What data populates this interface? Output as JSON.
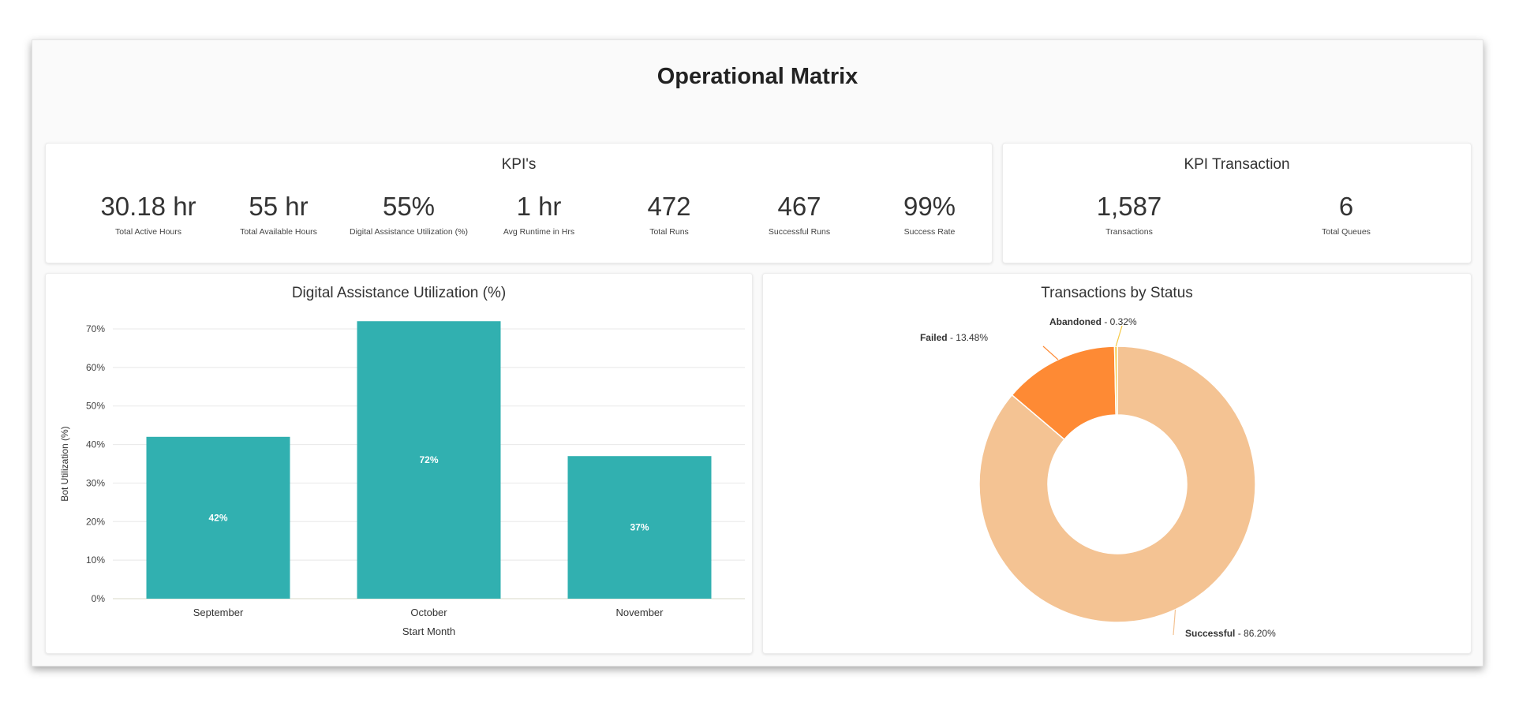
{
  "title": "Operational Matrix",
  "kpis": {
    "title": "KPI's",
    "items": [
      {
        "value": "30.18 hr",
        "label": "Total Active Hours"
      },
      {
        "value": "55 hr",
        "label": "Total Available Hours"
      },
      {
        "value": "55%",
        "label": "Digital Assistance Utilization (%)"
      },
      {
        "value": "1 hr",
        "label": "Avg Runtime in Hrs"
      },
      {
        "value": "472",
        "label": "Total Runs"
      },
      {
        "value": "467",
        "label": "Successful Runs"
      },
      {
        "value": "99%",
        "label": "Success Rate"
      }
    ]
  },
  "kpi_transaction": {
    "title": "KPI Transaction",
    "items": [
      {
        "value": "1,587",
        "label": "Transactions"
      },
      {
        "value": "6",
        "label": "Total Queues"
      }
    ]
  },
  "colors": {
    "bar": "#31b0b0",
    "successful": "#f4c393",
    "failed": "#fe8a34",
    "abandoned": "#f5c842"
  },
  "chart_data": [
    {
      "type": "bar",
      "title": "Digital Assistance Utilization (%)",
      "xlabel": "Start Month",
      "ylabel": "Bot Utilization (%)",
      "categories": [
        "September",
        "October",
        "November"
      ],
      "values": [
        42,
        72,
        37
      ],
      "data_labels": [
        "42%",
        "72%",
        "37%"
      ],
      "ylim": [
        0,
        70
      ],
      "yticks": [
        0,
        10,
        20,
        30,
        40,
        50,
        60,
        70
      ],
      "ytick_labels": [
        "0%",
        "10%",
        "20%",
        "30%",
        "40%",
        "50%",
        "60%",
        "70%"
      ],
      "grid": true
    },
    {
      "type": "pie",
      "variant": "donut",
      "title": "Transactions by Status",
      "slices": [
        {
          "name": "Successful",
          "value": 86.2,
          "label": "86.20%"
        },
        {
          "name": "Failed",
          "value": 13.48,
          "label": "13.48%"
        },
        {
          "name": "Abandoned",
          "value": 0.32,
          "label": "0.32%"
        }
      ]
    }
  ]
}
